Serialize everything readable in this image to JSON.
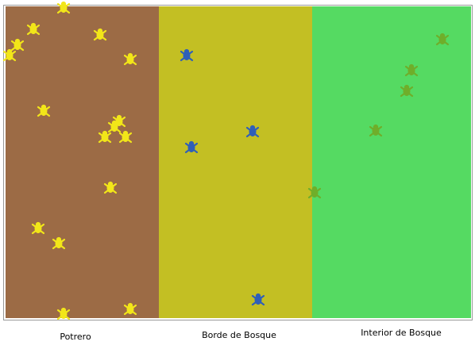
{
  "zones": [
    {
      "label": "Potrero"
    },
    {
      "label": "Borde de Bosque"
    },
    {
      "label": "Interior de Bosque"
    }
  ]
}
